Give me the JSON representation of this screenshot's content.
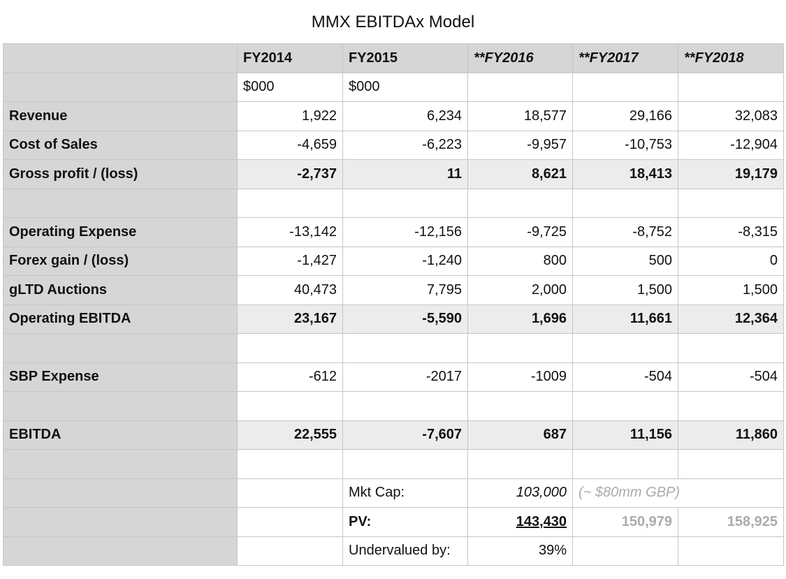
{
  "title": "MMX EBITDAx Model",
  "header": {
    "fy2014": "FY2014",
    "fy2015": "FY2015",
    "fy2016": "**FY2016",
    "fy2017": "**FY2017",
    "fy2018": "**FY2018"
  },
  "units": {
    "fy2014": "$000",
    "fy2015": "$000"
  },
  "rows": {
    "revenue": {
      "label": "Revenue",
      "v": [
        "1,922",
        "6,234",
        "18,577",
        "29,166",
        "32,083"
      ]
    },
    "cos": {
      "label": "Cost of Sales",
      "v": [
        "-4,659",
        "-6,223",
        "-9,957",
        "-10,753",
        "-12,904"
      ]
    },
    "gross": {
      "label": "Gross profit / (loss)",
      "v": [
        "-2,737",
        "11",
        "8,621",
        "18,413",
        "19,179"
      ]
    },
    "opex": {
      "label": "Operating Expense",
      "v": [
        "-13,142",
        "-12,156",
        "-9,725",
        "-8,752",
        "-8,315"
      ]
    },
    "forex": {
      "label": "Forex gain / (loss)",
      "v": [
        "-1,427",
        "-1,240",
        "800",
        "500",
        "0"
      ]
    },
    "gltd": {
      "label": "gLTD Auctions",
      "v": [
        "40,473",
        "7,795",
        "2,000",
        "1,500",
        "1,500"
      ]
    },
    "opebitda": {
      "label": "Operating EBITDA",
      "v": [
        "23,167",
        "-5,590",
        "1,696",
        "11,661",
        "12,364"
      ]
    },
    "sbp": {
      "label": "SBP Expense",
      "v": [
        "-612",
        "-2017",
        "-1009",
        "-504",
        "-504"
      ]
    },
    "ebitda": {
      "label": "EBITDA",
      "v": [
        "22,555",
        "-7,607",
        "687",
        "11,156",
        "11,860"
      ]
    }
  },
  "valuation": {
    "mktcap_label": "Mkt Cap:",
    "mktcap_value": "103,000",
    "mktcap_note": "(~ $80mm GBP)",
    "pv_label": "PV:",
    "pv_values": [
      "143,430",
      "150,979",
      "158,925"
    ],
    "undervalued_label": "Undervalued by:",
    "undervalued_value": "39%"
  }
}
